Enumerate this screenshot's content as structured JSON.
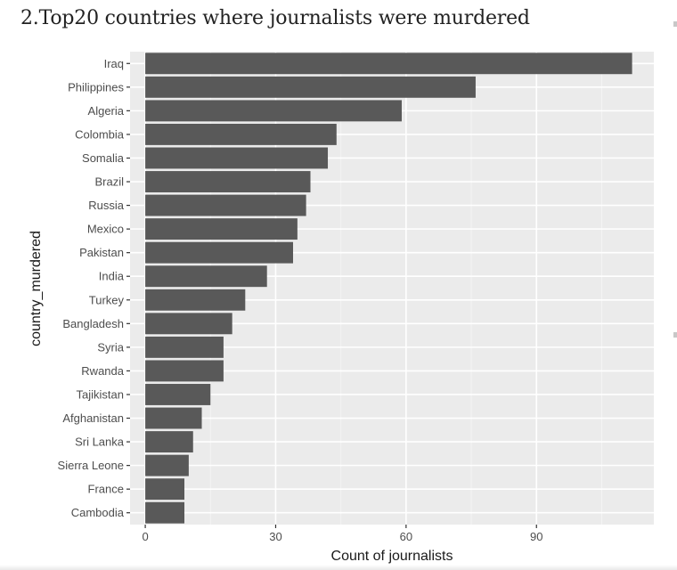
{
  "page": {
    "title": "2.Top20 countries where journalists were murdered"
  },
  "chart_data": {
    "type": "bar",
    "orientation": "horizontal",
    "title": "2.Top20 countries where journalists were murdered",
    "xlabel": "Count of journalists",
    "ylabel": "country_murdered",
    "categories": [
      "Iraq",
      "Philippines",
      "Algeria",
      "Colombia",
      "Somalia",
      "Brazil",
      "Russia",
      "Mexico",
      "Pakistan",
      "India",
      "Turkey",
      "Bangladesh",
      "Syria",
      "Rwanda",
      "Tajikistan",
      "Afghanistan",
      "Sri Lanka",
      "Sierra Leone",
      "France",
      "Cambodia"
    ],
    "values": [
      112,
      76,
      59,
      44,
      42,
      38,
      37,
      35,
      34,
      28,
      23,
      20,
      18,
      18,
      15,
      13,
      11,
      10,
      9,
      9
    ],
    "xlim": [
      -3.5,
      117
    ],
    "xticks": [
      "0",
      "30",
      "60",
      "90"
    ],
    "xtick_values": [
      0,
      30,
      60,
      90
    ],
    "grid": true,
    "colors": {
      "bar": "#595959",
      "panel": "#ebebeb",
      "grid_major": "#ffffff",
      "grid_minor": "#f4f4f4",
      "text": "#4d4d4d",
      "axis_title": "#1a1a1a"
    }
  }
}
